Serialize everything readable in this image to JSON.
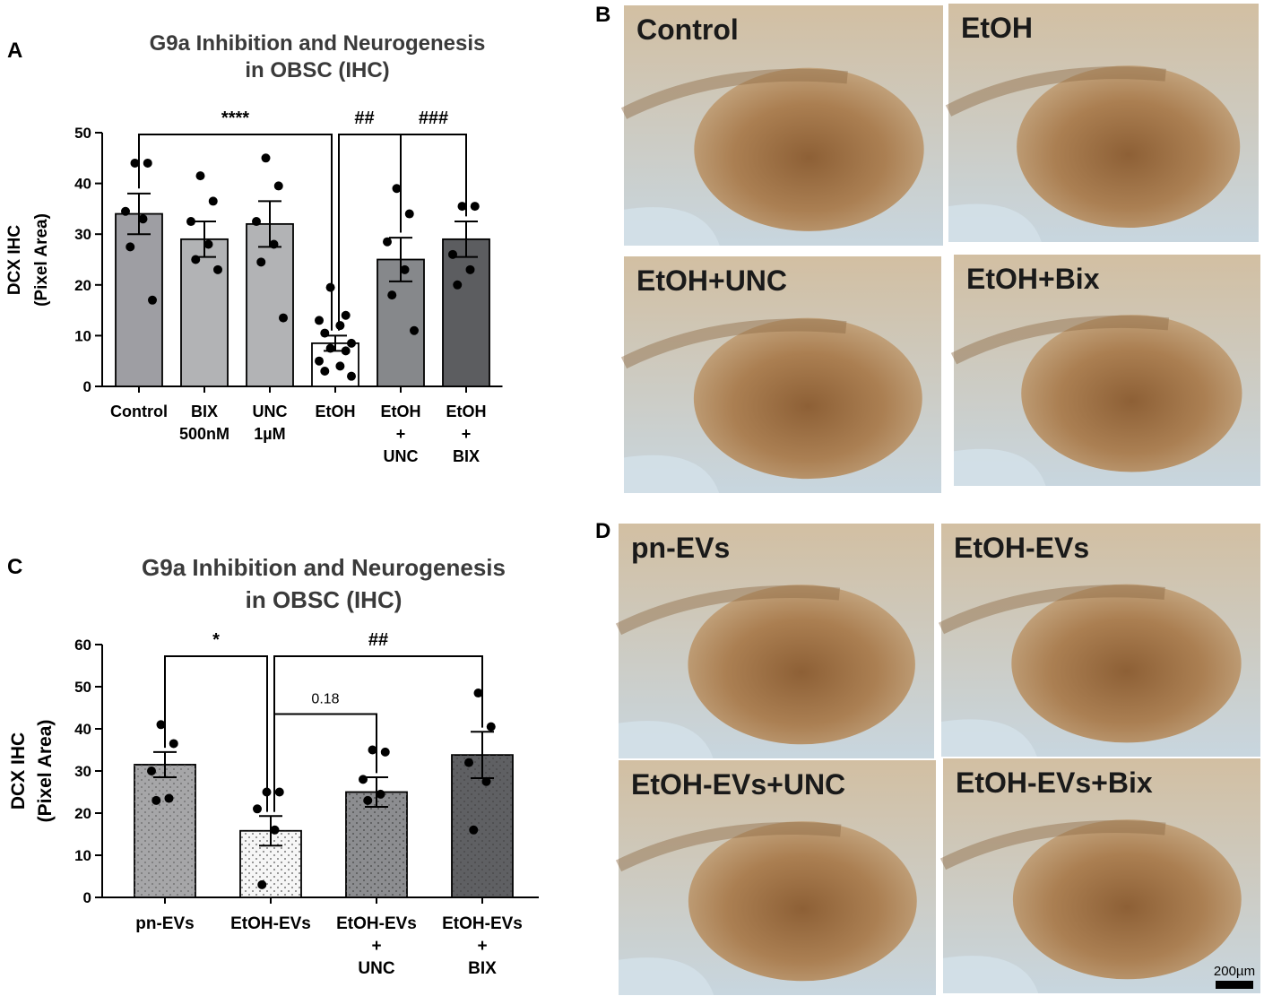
{
  "panels": {
    "A": "A",
    "B": "B",
    "C": "C",
    "D": "D"
  },
  "chart_data": [
    {
      "panel": "A",
      "type": "bar",
      "title_lines": [
        "G9a Inhibition and Neurogenesis",
        "in OBSC (IHC)"
      ],
      "ylabel_lines": [
        "DCX IHC",
        "(Pixel Area)"
      ],
      "ylim": [
        0,
        50
      ],
      "yticks": [
        0,
        10,
        20,
        30,
        40,
        50
      ],
      "categories": [
        {
          "lines": [
            "Control"
          ]
        },
        {
          "lines": [
            "BIX",
            "500nM"
          ]
        },
        {
          "lines": [
            "UNC",
            "1µM"
          ]
        },
        {
          "lines": [
            "EtOH"
          ]
        },
        {
          "lines": [
            "EtOH",
            "+",
            "UNC"
          ]
        },
        {
          "lines": [
            "EtOH",
            "+",
            "BIX"
          ]
        }
      ],
      "values": [
        34,
        29,
        32,
        8.5,
        25,
        29
      ],
      "errors": [
        4,
        3.5,
        4.5,
        1.5,
        4.3,
        3.5
      ],
      "points": [
        [
          44,
          44,
          34.5,
          33,
          27.5,
          17
        ],
        [
          41.5,
          36.5,
          32.5,
          28,
          25,
          23
        ],
        [
          45,
          39.5,
          32.5,
          28,
          24.5,
          13.5
        ],
        [
          19.5,
          14,
          13,
          12,
          10.5,
          8.5,
          7.5,
          7,
          5,
          4,
          3,
          2
        ],
        [
          39,
          34,
          28.5,
          23,
          18,
          11
        ],
        [
          35.5,
          35.5,
          26,
          23,
          20
        ]
      ],
      "bar_colors": [
        "#9e9ea3",
        "#b2b3b5",
        "#b2b3b5",
        "#ffffff",
        "#86888b",
        "#5c5d60"
      ],
      "comparisons": [
        {
          "from": 0,
          "to": 3,
          "label": "****",
          "level": 50
        },
        {
          "from": 3,
          "to": 4,
          "label": "##",
          "level": 50
        },
        {
          "from": 4,
          "to": 5,
          "label": "###",
          "level": 50
        }
      ]
    },
    {
      "panel": "C",
      "type": "bar",
      "title_lines": [
        "G9a Inhibition and Neurogenesis",
        "in OBSC (IHC)"
      ],
      "ylabel_lines": [
        "DCX IHC",
        "(Pixel Area)"
      ],
      "ylim": [
        0,
        60
      ],
      "yticks": [
        0,
        10,
        20,
        30,
        40,
        50,
        60
      ],
      "categories": [
        {
          "lines": [
            "pn-EVs"
          ]
        },
        {
          "lines": [
            "EtOH-EVs"
          ]
        },
        {
          "lines": [
            "EtOH-EVs",
            "+",
            "UNC"
          ]
        },
        {
          "lines": [
            "EtOH-EVs",
            "+",
            "BIX"
          ]
        }
      ],
      "values": [
        31.5,
        15.8,
        25,
        33.8
      ],
      "errors": [
        3,
        3.5,
        3.5,
        5.5
      ],
      "points": [
        [
          41,
          36.5,
          30,
          23.5,
          23
        ],
        [
          25,
          25,
          21,
          16,
          3
        ],
        [
          35,
          34.5,
          28,
          24.5,
          23
        ],
        [
          48.5,
          40.5,
          32,
          27.5,
          16
        ]
      ],
      "bar_colors": [
        "#a6a6a8",
        "#f6f6f6",
        "#8c8d90",
        "#5f6063"
      ],
      "comparisons": [
        {
          "from": 0,
          "to": 1,
          "label": "*",
          "level": 55
        },
        {
          "from": 1,
          "to": 3,
          "label": "##",
          "level": 55
        },
        {
          "from": 1,
          "to": 2,
          "label": "0.18",
          "level": 43.5
        }
      ]
    }
  ],
  "micrographs": {
    "B": [
      {
        "label": "Control"
      },
      {
        "label": "EtOH"
      },
      {
        "label": "EtOH+UNC"
      },
      {
        "label": "EtOH+Bix"
      }
    ],
    "D": [
      {
        "label": "pn-EVs"
      },
      {
        "label": "EtOH-EVs"
      },
      {
        "label": "EtOH-EVs+UNC"
      },
      {
        "label": "EtOH-EVs+Bix"
      }
    ],
    "scale_bar": "200µm",
    "colors": {
      "tissue": "#b08a5e",
      "tissue_dark": "#7a4e26",
      "background": "#cfdbe3"
    }
  }
}
